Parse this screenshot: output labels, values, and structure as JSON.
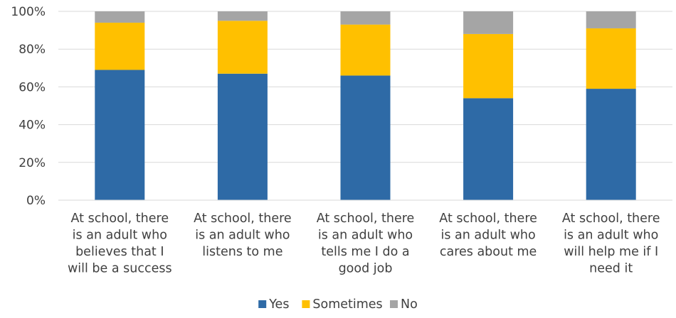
{
  "chart_data": {
    "type": "bar",
    "stacked": true,
    "percent": true,
    "categories": [
      [
        "At school, there",
        "is an adult who",
        "believes that I",
        "will be a success"
      ],
      [
        "At school, there",
        "is an adult who",
        "listens to me"
      ],
      [
        "At school, there",
        "is an adult who",
        "tells me I do a",
        "good job"
      ],
      [
        "At school, there",
        "is an adult who",
        "cares about me"
      ],
      [
        "At school, there",
        "is an adult who",
        "will help me if I",
        "need it"
      ]
    ],
    "series": [
      {
        "name": "Yes",
        "color": "#2E6AA6",
        "values": [
          69,
          67,
          66,
          54,
          59
        ]
      },
      {
        "name": "Sometimes",
        "color": "#FFC000",
        "values": [
          25,
          28,
          27,
          34,
          32
        ]
      },
      {
        "name": "No",
        "color": "#A5A5A5",
        "values": [
          6,
          5,
          7,
          12,
          9
        ]
      }
    ],
    "ylim": [
      0,
      100
    ],
    "yticks": [
      "0%",
      "20%",
      "40%",
      "60%",
      "80%",
      "100%"
    ],
    "grid": true,
    "legend": "bottom"
  }
}
